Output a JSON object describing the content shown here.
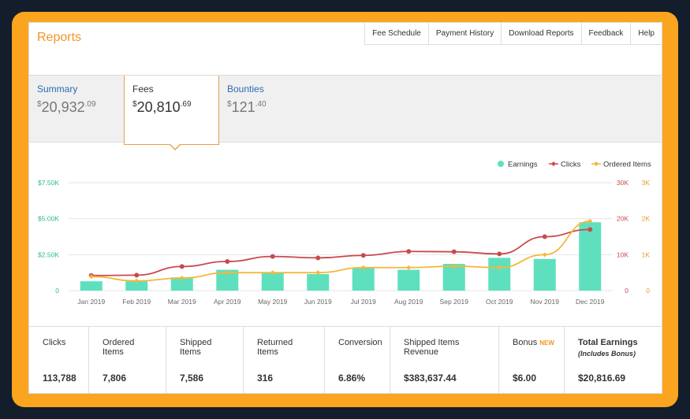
{
  "header": {
    "title": "Reports",
    "links": [
      "Fee Schedule",
      "Payment History",
      "Download Reports",
      "Feedback",
      "Help"
    ]
  },
  "tabs": [
    {
      "label": "Summary",
      "currency": "$",
      "amount": "20,932",
      "cents": ".09",
      "active": false
    },
    {
      "label": "Fees",
      "currency": "$",
      "amount": "20,810",
      "cents": ".69",
      "active": true
    },
    {
      "label": "Bounties",
      "currency": "$",
      "amount": "121",
      "cents": ".40",
      "active": false
    }
  ],
  "chart_data": {
    "type": "bar",
    "categories": [
      "Jan 2019",
      "Feb 2019",
      "Mar 2019",
      "Apr 2019",
      "May 2019",
      "Jun 2019",
      "Jul 2019",
      "Aug 2019",
      "Sep 2019",
      "Oct 2019",
      "Nov 2019",
      "Dec 2019"
    ],
    "series": [
      {
        "name": "Earnings",
        "type": "bar",
        "axis": "left",
        "color": "#5ee0be",
        "values": [
          650,
          650,
          920,
          1450,
          1250,
          1150,
          1580,
          1450,
          1860,
          2280,
          2200,
          4750
        ]
      },
      {
        "name": "Clicks",
        "type": "line",
        "axis": "right-1",
        "color": "#c94a4e",
        "values": [
          4200,
          4300,
          6700,
          8100,
          9500,
          9100,
          9800,
          10900,
          10800,
          10200,
          15000,
          17000
        ]
      },
      {
        "name": "Ordered Items",
        "type": "line",
        "axis": "right-2",
        "color": "#f4b73b",
        "values": [
          390,
          270,
          350,
          500,
          500,
          500,
          640,
          640,
          680,
          640,
          1000,
          1930
        ]
      }
    ],
    "left_axis": {
      "ticks": [
        "0",
        "$2.50K",
        "$5.00K",
        "$7.50K"
      ],
      "ylim": [
        0,
        7500
      ]
    },
    "right_axis_1": {
      "ticks": [
        "0",
        "10K",
        "20K",
        "30K"
      ],
      "ylim": [
        0,
        30000
      ]
    },
    "right_axis_2": {
      "ticks": [
        "0",
        "1K",
        "2K",
        "3K"
      ],
      "ylim": [
        0,
        3000
      ]
    },
    "legend_position": "top-right",
    "grid": true
  },
  "stats": [
    {
      "label": "Clicks",
      "value": "113,788"
    },
    {
      "label": "Ordered Items",
      "value": "7,806"
    },
    {
      "label": "Shipped Items",
      "value": "7,586"
    },
    {
      "label": "Returned Items",
      "value": "316"
    },
    {
      "label": "Conversion",
      "value": "6.86%"
    },
    {
      "label": "Shipped Items Revenue",
      "value": "$383,637.44"
    },
    {
      "label": "Bonus",
      "badge": "NEW",
      "value": "$6.00"
    },
    {
      "label": "Total Earnings",
      "sublabel": "(Includes Bonus)",
      "value": "$20,816.69"
    }
  ],
  "colors": {
    "frame": "#fba41f",
    "background": "#141d2b",
    "accent": "#f39523",
    "link": "#2d6bb0"
  }
}
